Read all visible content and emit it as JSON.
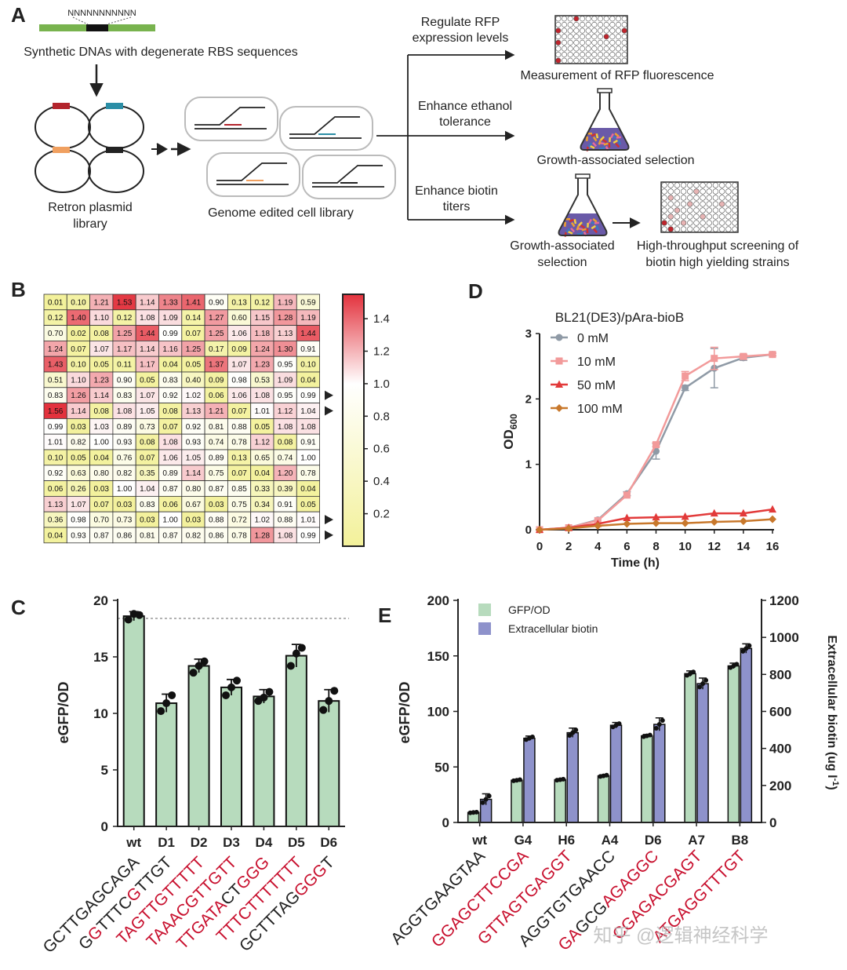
{
  "panelA": {
    "letter": "A",
    "degenerate_seq": "NNNNNNNNNNN",
    "dna_caption": "Synthetic DNAs with degenerate RBS sequences",
    "plasmid_caption": [
      "Retron plasmid",
      "library"
    ],
    "cell_caption": "Genome edited cell library",
    "arrow1": [
      "Regulate RFP",
      "expression levels"
    ],
    "arrow2": [
      "Enhance ethanol",
      "tolerance"
    ],
    "arrow3": [
      "Enhance biotin",
      "titers"
    ],
    "out1": "Measurement of RFP fluorescence",
    "out2": "Growth-associated selection",
    "out3a": [
      "Growth-associated",
      "selection"
    ],
    "out3b": [
      "High-throughput screening of",
      "biotin high yielding strains"
    ]
  },
  "panelB": {
    "letter": "B",
    "matrix": [
      [
        "0.01",
        "0.10",
        "1.21",
        "1.53",
        "1.14",
        "1.33",
        "1.41",
        "0.90",
        "0.13",
        "0.12",
        "1.19",
        "0.59"
      ],
      [
        "0.12",
        "1.40",
        "1.10",
        "0.12",
        "1.08",
        "1.09",
        "0.14",
        "1.27",
        "0.60",
        "1.15",
        "1.28",
        "1.19"
      ],
      [
        "0.70",
        "0.02",
        "0.08",
        "1.25",
        "1.44",
        "0.99",
        "0.07",
        "1.25",
        "1.06",
        "1.18",
        "1.13",
        "1.44"
      ],
      [
        "1.24",
        "0.07",
        "1.07",
        "1.17",
        "1.14",
        "1.16",
        "1.25",
        "0.17",
        "0.09",
        "1.24",
        "1.30",
        "0.91"
      ],
      [
        "1.43",
        "0.10",
        "0.05",
        "0.11",
        "1.17",
        "0.04",
        "0.05",
        "1.37",
        "1.07",
        "1.23",
        "0.95",
        "0.10"
      ],
      [
        "0.51",
        "1.10",
        "1.23",
        "0.90",
        "0.05",
        "0.83",
        "0.40",
        "0.09",
        "0.98",
        "0.53",
        "1.09",
        "0.04"
      ],
      [
        "0.83",
        "1.26",
        "1.14",
        "0.83",
        "1.07",
        "0.92",
        "1.02",
        "0.06",
        "1.06",
        "1.08",
        "0.95",
        "0.99"
      ],
      [
        "1.56",
        "1.14",
        "0.08",
        "1.08",
        "1.05",
        "0.08",
        "1.13",
        "1.21",
        "0.07",
        "1.01",
        "1.12",
        "1.04"
      ],
      [
        "0.99",
        "0.03",
        "1.03",
        "0.89",
        "0.73",
        "0.07",
        "0.92",
        "0.81",
        "0.88",
        "0.05",
        "1.08",
        "1.08"
      ],
      [
        "1.01",
        "0.82",
        "1.00",
        "0.93",
        "0.08",
        "1.08",
        "0.93",
        "0.74",
        "0.78",
        "1.12",
        "0.08",
        "0.91"
      ],
      [
        "0.10",
        "0.05",
        "0.04",
        "0.76",
        "0.07",
        "1.06",
        "1.05",
        "0.89",
        "0.13",
        "0.65",
        "0.74",
        "1.00"
      ],
      [
        "0.92",
        "0.63",
        "0.80",
        "0.82",
        "0.35",
        "0.89",
        "1.14",
        "0.75",
        "0.07",
        "0.04",
        "1.20",
        "0.78"
      ],
      [
        "0.06",
        "0.26",
        "0.03",
        "1.00",
        "1.04",
        "0.87",
        "0.80",
        "0.87",
        "0.85",
        "0.33",
        "0.39",
        "0.04"
      ],
      [
        "1.13",
        "1.07",
        "0.07",
        "0.03",
        "0.83",
        "0.06",
        "0.67",
        "0.03",
        "0.75",
        "0.34",
        "0.91",
        "0.05"
      ],
      [
        "0.36",
        "0.98",
        "0.70",
        "0.73",
        "0.03",
        "1.00",
        "0.03",
        "0.88",
        "0.72",
        "1.02",
        "0.88",
        "1.01"
      ],
      [
        "0.04",
        "0.93",
        "0.87",
        "0.86",
        "0.81",
        "0.87",
        "0.82",
        "0.86",
        "0.78",
        "1.28",
        "1.08",
        "0.99"
      ]
    ],
    "marked_rows": [
      6,
      7,
      14,
      15
    ],
    "colorbar_ticks": [
      "1.4",
      "1.2",
      "1.0",
      "0.8",
      "0.6",
      "0.4",
      "0.2"
    ],
    "colorbar_range": [
      0.0,
      1.55
    ],
    "colors": {
      "low": "#f3f19a",
      "mid": "#ffffff",
      "high": "#e3323d"
    }
  },
  "chart_data": [
    {
      "panel": "D",
      "type": "line",
      "title": "BL21(DE3)/pAra-bioB",
      "xlabel": "Time (h)",
      "ylabel": "OD600",
      "x": [
        0,
        2,
        4,
        6,
        8,
        10,
        12,
        14,
        16
      ],
      "xticks": [
        "0",
        "2",
        "4",
        "6",
        "8",
        "10",
        "12",
        "14",
        "16"
      ],
      "yticks": [
        "0",
        "1",
        "2",
        "3"
      ],
      "xlim": [
        0,
        16
      ],
      "ylim": [
        0,
        3
      ],
      "legend_position": "top-left",
      "series": [
        {
          "name": "0 mM",
          "color": "#8f9aa6",
          "marker": "circle",
          "values": [
            0.0,
            0.03,
            0.15,
            0.55,
            1.2,
            2.17,
            2.47,
            2.63,
            2.68
          ],
          "err": [
            0,
            0,
            0,
            0.03,
            0.12,
            0.04,
            0.3,
            0.04,
            0.02
          ]
        },
        {
          "name": "10 mM",
          "color": "#f29a9a",
          "marker": "square",
          "values": [
            0.0,
            0.03,
            0.14,
            0.53,
            1.3,
            2.35,
            2.62,
            2.65,
            2.68
          ],
          "err": [
            0,
            0,
            0,
            0,
            0.03,
            0.07,
            0.17,
            0.03,
            0.02
          ]
        },
        {
          "name": "50 mM",
          "color": "#e23a3a",
          "marker": "triangle",
          "values": [
            0.0,
            0.03,
            0.09,
            0.18,
            0.19,
            0.2,
            0.25,
            0.25,
            0.31
          ],
          "err": [
            0,
            0,
            0,
            0,
            0,
            0,
            0,
            0,
            0
          ]
        },
        {
          "name": "100 mM",
          "color": "#c8782c",
          "marker": "diamond",
          "values": [
            0.0,
            0.02,
            0.06,
            0.09,
            0.1,
            0.1,
            0.12,
            0.13,
            0.16
          ],
          "err": [
            0,
            0,
            0,
            0,
            0,
            0,
            0,
            0,
            0
          ]
        }
      ]
    },
    {
      "panel": "C",
      "type": "bar",
      "xlabel": "",
      "ylabel": "eGFP/OD",
      "categories": [
        "wt",
        "D1",
        "D2",
        "D3",
        "D4",
        "D5",
        "D6"
      ],
      "values": [
        18.6,
        10.9,
        14.2,
        12.3,
        11.5,
        15.1,
        11.1
      ],
      "err": [
        0.4,
        0.8,
        0.6,
        0.7,
        0.6,
        1.0,
        1.0
      ],
      "points": [
        [
          18.3,
          18.8,
          18.7
        ],
        [
          10.2,
          10.9,
          11.6
        ],
        [
          13.6,
          14.2,
          14.6
        ],
        [
          11.6,
          12.3,
          12.9
        ],
        [
          11.1,
          11.4,
          11.9
        ],
        [
          14.2,
          15.3,
          15.8
        ],
        [
          10.3,
          11.1,
          12.0
        ]
      ],
      "reference_line": 18.4,
      "yticks": [
        "0",
        "5",
        "10",
        "15",
        "20"
      ],
      "ylim": [
        0,
        20
      ],
      "bar_color": "#b7dbbd",
      "rbs": [
        {
          "segs": [
            [
              "GCTTGAGCAGA",
              "k"
            ]
          ]
        },
        {
          "segs": [
            [
              "G",
              "k"
            ],
            [
              "G",
              "r"
            ],
            [
              "TTTC",
              "k"
            ],
            [
              "G",
              "r"
            ],
            [
              "TTGT",
              "k"
            ]
          ]
        },
        {
          "segs": [
            [
              "TAGTTGTTTTT",
              "r"
            ]
          ]
        },
        {
          "segs": [
            [
              "TAAACGTTGTT",
              "r"
            ]
          ]
        },
        {
          "segs": [
            [
              "TTGATA",
              "r"
            ],
            [
              "CT",
              "k"
            ],
            [
              "GGG",
              "r"
            ]
          ]
        },
        {
          "segs": [
            [
              "TTTCTTTTTTT",
              "r"
            ]
          ]
        },
        {
          "segs": [
            [
              "GCTTTAG",
              "k"
            ],
            [
              "GGG",
              "r"
            ],
            [
              "T",
              "k"
            ]
          ]
        }
      ]
    },
    {
      "panel": "E",
      "type": "bar",
      "xlabel": "",
      "ylabel": "eGFP/OD",
      "y2label": "Extracellular biotin (ug l-1)",
      "categories": [
        "wt",
        "G4",
        "H6",
        "A4",
        "D6",
        "A7",
        "B8"
      ],
      "legend_position": "top-left",
      "series": [
        {
          "name": "GFP/OD",
          "axis": "left",
          "color": "#b7dbbd",
          "values": [
            9,
            38,
            38.5,
            42,
            78,
            134,
            141
          ],
          "err": [
            0.5,
            0.8,
            0.7,
            0.9,
            1.2,
            2.5,
            2.5
          ]
        },
        {
          "name": "Extracellular biotin",
          "axis": "right",
          "color": "#8e92cb",
          "values": [
            125,
            455,
            485,
            525,
            530,
            750,
            940
          ],
          "err": [
            30,
            12,
            25,
            15,
            35,
            30,
            25
          ]
        }
      ],
      "yticks": [
        "0",
        "50",
        "100",
        "150",
        "200"
      ],
      "ylim": [
        0,
        200
      ],
      "y2ticks": [
        "0",
        "200",
        "400",
        "600",
        "800",
        "1000",
        "1200"
      ],
      "y2lim": [
        0,
        1200
      ],
      "rbs": [
        {
          "segs": [
            [
              "AGGTGAAGTAA",
              "k"
            ]
          ]
        },
        {
          "segs": [
            [
              "GGAGCTTCCGA",
              "r"
            ]
          ]
        },
        {
          "segs": [
            [
              "GTTAGTGAGGT",
              "r"
            ]
          ]
        },
        {
          "segs": [
            [
              "AGGTGTGAACC",
              "k"
            ]
          ]
        },
        {
          "segs": [
            [
              "GA",
              "r"
            ],
            [
              "GCG",
              "k"
            ],
            [
              "AGAGGC",
              "r"
            ]
          ]
        },
        {
          "segs": [
            [
              "CGAGACGAGT",
              "r"
            ]
          ]
        },
        {
          "segs": [
            [
              "ATGAGGTTTGT",
              "r"
            ]
          ]
        }
      ]
    }
  ],
  "labels": {
    "panelC": "C",
    "panelD": "D",
    "panelE": "E",
    "od_main": "OD",
    "od_sub": "600",
    "e_right_main": "Extracellular biotin (ug l",
    "e_right_sup": "-1",
    "e_right_end": ")"
  },
  "watermark": "知乎 @逻辑神经科学"
}
